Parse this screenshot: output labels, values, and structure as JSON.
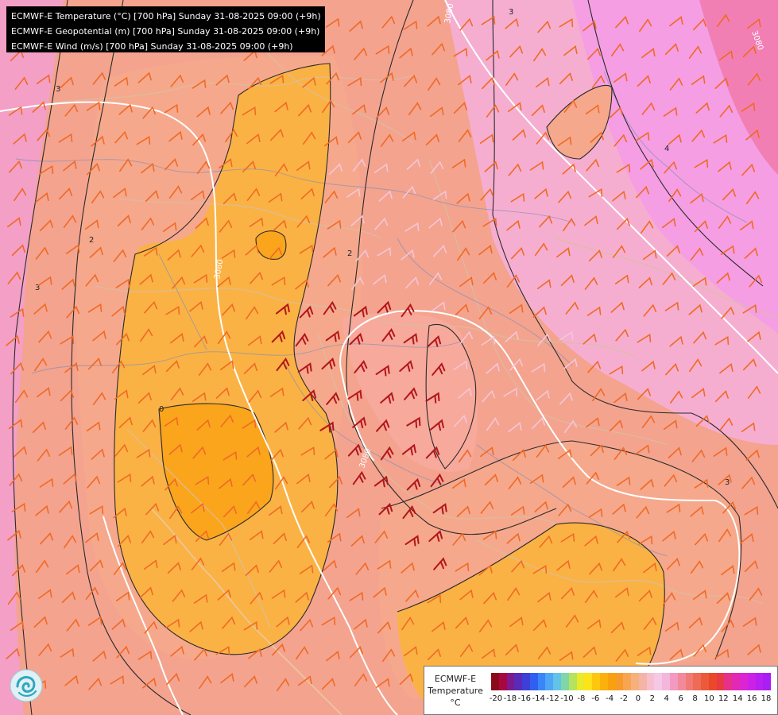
{
  "header": {
    "lines": [
      "ECMWF-E Temperature (°C) [700 hPa] Sunday 31-08-2025 09:00 (+9h)",
      "ECMWF-E Geopotential (m) [700 hPa] Sunday 31-08-2025 09:00 (+9h)",
      "ECMWF-E Wind (m/s) [700 hPa] Sunday 31-08-2025 09:00 (+9h)"
    ]
  },
  "legend": {
    "model": "ECMWF-E",
    "variable": "Temperature",
    "unit": "°C",
    "ticks": [
      "-20",
      "-18",
      "-16",
      "-14",
      "-12",
      "-10",
      "-8",
      "-6",
      "-4",
      "-2",
      "0",
      "2",
      "4",
      "6",
      "8",
      "10",
      "12",
      "14",
      "16",
      "18"
    ],
    "colors": [
      "#8b0a1a",
      "#a8073f",
      "#7a1c8f",
      "#5a2bb8",
      "#3d3fd8",
      "#2f5ff0",
      "#3a86f6",
      "#4fa6f7",
      "#63c2e8",
      "#7fd6a8",
      "#b6e35c",
      "#e8ea2a",
      "#fde319",
      "#fdc70d",
      "#fbb00b",
      "#f9a00e",
      "#f79a2b",
      "#f8a553",
      "#f6b07b",
      "#f4b4a6",
      "#f6bfd0",
      "#f5c8e3",
      "#f3b6dc",
      "#f39ac0",
      "#f38a9b",
      "#f07a74",
      "#ee6b55",
      "#ec5a3c",
      "#ea4828",
      "#e83a44",
      "#e6308a",
      "#e229b4",
      "#dc25d2",
      "#cc21e6",
      "#b81ff0",
      "#a81ef4"
    ]
  },
  "map_labels": {
    "geopotential": [
      "3080",
      "3080",
      "3080",
      "3080"
    ],
    "temperature": [
      "2",
      "2",
      "3",
      "3",
      "4",
      "0",
      "3",
      "3"
    ]
  },
  "colors": {
    "warm_orange": "#fbb13a",
    "deep_orange": "#f9a41a",
    "salmon": "#f4a48c",
    "pink": "#f6b3c8",
    "magenta": "#f58de0",
    "contour": "#2a2a2a",
    "geopotential_line": "#ffffff",
    "border": "#c8b79a",
    "river": "#6f7fa8",
    "barb_weak": "#f4c6d8",
    "barb_mid": "#f06a24",
    "barb_strong": "#b2161a"
  }
}
